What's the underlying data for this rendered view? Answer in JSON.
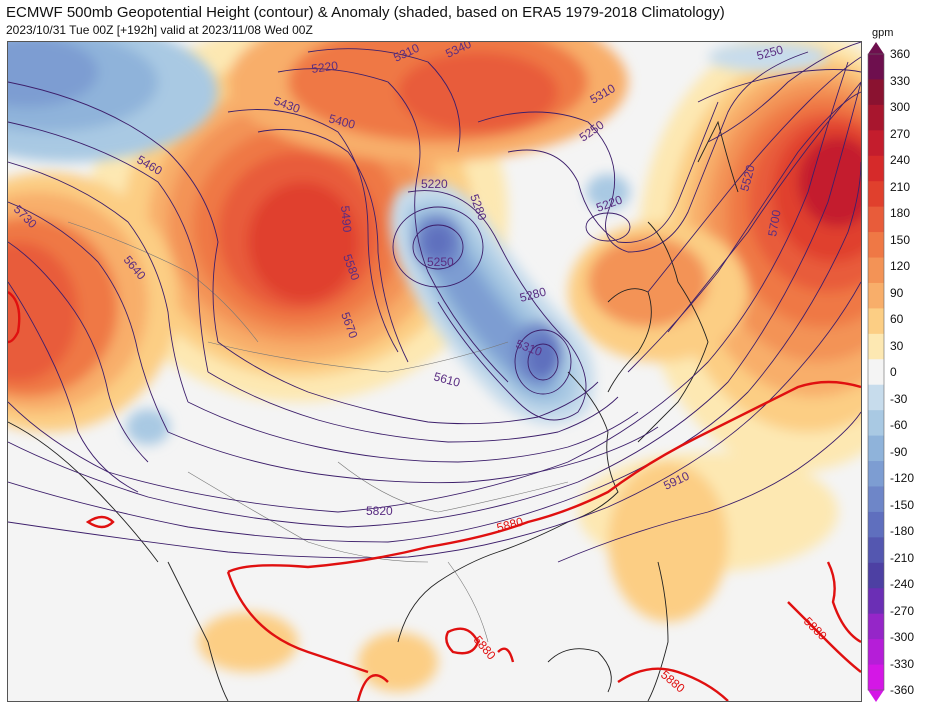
{
  "header": {
    "title": "ECMWF 500mb Geopotential Height (contour) & Anomaly (shaded, based on ERA5 1979-2018 Climatology)",
    "subtitle": "2023/10/31 Tue 00Z [+192h] valid at 2023/11/08 Wed 00Z"
  },
  "colorbar": {
    "unit": "gpm",
    "levels": [
      360,
      330,
      300,
      270,
      240,
      210,
      180,
      150,
      120,
      90,
      60,
      30,
      0,
      -30,
      -60,
      -90,
      -120,
      -150,
      -180,
      -210,
      -240,
      -270,
      -300,
      -330,
      -360
    ],
    "colors": [
      "#6e0f4e",
      "#8a1230",
      "#a8162e",
      "#c41d2d",
      "#d62a2a",
      "#e0402d",
      "#e85c3a",
      "#ef7845",
      "#f39356",
      "#f8ae6a",
      "#fcce84",
      "#fde8b2",
      "#f4f4f4",
      "#c7dcec",
      "#a9c9e3",
      "#8fb3da",
      "#7d9dd2",
      "#6e86c8",
      "#5f6fbe",
      "#5457b0",
      "#4d40a3",
      "#6b2fb5",
      "#9526c8",
      "#b51ed8",
      "#d417e6"
    ]
  },
  "contour_labels": [
    {
      "text": "5220",
      "color": "#5a2d82"
    },
    {
      "text": "5310",
      "color": "#5a2d82"
    },
    {
      "text": "5340",
      "color": "#5a2d82"
    },
    {
      "text": "5250",
      "color": "#5a2d82"
    },
    {
      "text": "5310",
      "color": "#5a2d82"
    },
    {
      "text": "5430",
      "color": "#5a2d82"
    },
    {
      "text": "5400",
      "color": "#5a2d82"
    },
    {
      "text": "5460",
      "color": "#5a2d82"
    },
    {
      "text": "5250",
      "color": "#5a2d82"
    },
    {
      "text": "5220",
      "color": "#5a2d82"
    },
    {
      "text": "5280",
      "color": "#5a2d82"
    },
    {
      "text": "5220",
      "color": "#5a2d82"
    },
    {
      "text": "5520",
      "color": "#5a2d82"
    },
    {
      "text": "5490",
      "color": "#5a2d82"
    },
    {
      "text": "5730",
      "color": "#5a2d82"
    },
    {
      "text": "5640",
      "color": "#5a2d82"
    },
    {
      "text": "5580",
      "color": "#5a2d82"
    },
    {
      "text": "5250",
      "color": "#5a2d82"
    },
    {
      "text": "5700",
      "color": "#5a2d82"
    },
    {
      "text": "5280",
      "color": "#5a2d82"
    },
    {
      "text": "5670",
      "color": "#5a2d82"
    },
    {
      "text": "5310",
      "color": "#5a2d82"
    },
    {
      "text": "5610",
      "color": "#5a2d82"
    },
    {
      "text": "5910",
      "color": "#5a2d82"
    },
    {
      "text": "5820",
      "color": "#5a2d82"
    },
    {
      "text": "5880",
      "color": "#e01010"
    },
    {
      "text": "5880",
      "color": "#e01010"
    },
    {
      "text": "5880",
      "color": "#e01010"
    },
    {
      "text": "5880",
      "color": "#e01010"
    }
  ]
}
